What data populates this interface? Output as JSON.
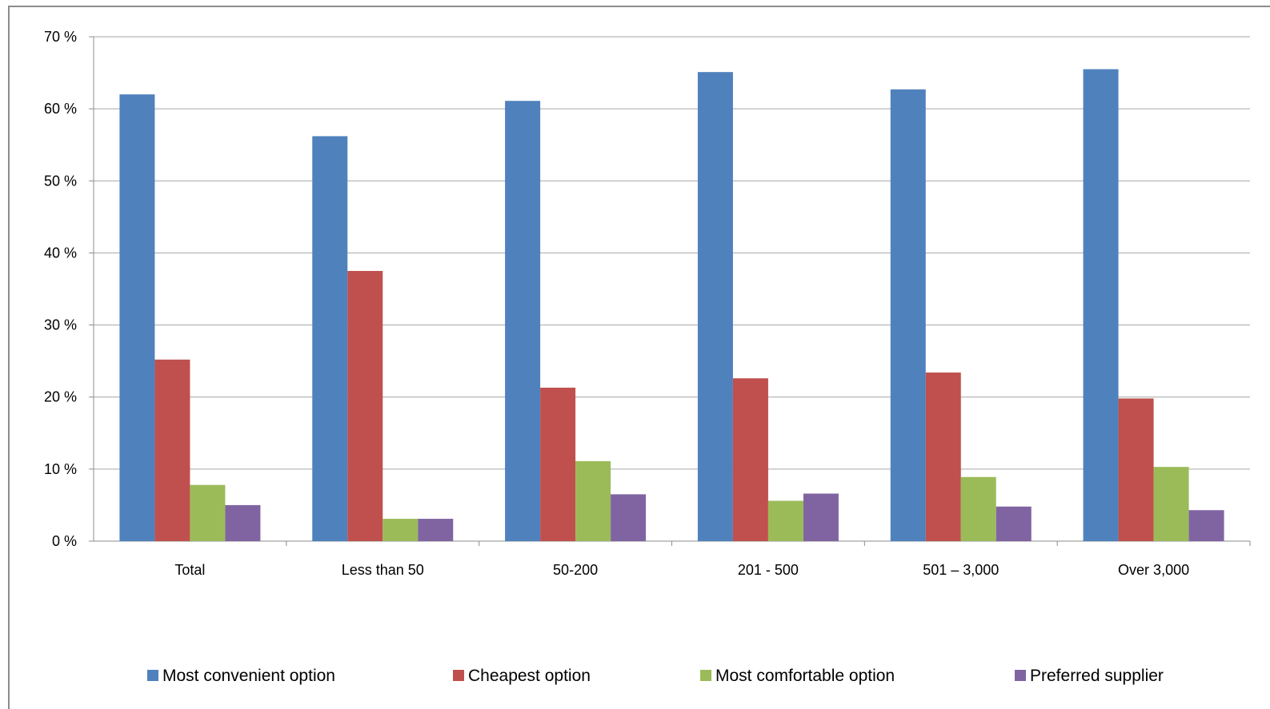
{
  "chart_data": {
    "type": "bar",
    "categories": [
      "Total",
      "Less than 50",
      "50-200",
      "201 - 500",
      "501 – 3,000",
      "Over 3,000"
    ],
    "series": [
      {
        "name": "Most convenient option",
        "color": "#4F81BD",
        "values": [
          62.0,
          56.2,
          61.1,
          65.1,
          62.7,
          65.5
        ]
      },
      {
        "name": "Cheapest option",
        "color": "#C0504D",
        "values": [
          25.2,
          37.5,
          21.3,
          22.6,
          23.4,
          19.8
        ]
      },
      {
        "name": "Most comfortable option",
        "color": "#9BBB59",
        "values": [
          7.8,
          3.1,
          11.1,
          5.6,
          8.9,
          10.3
        ]
      },
      {
        "name": "Preferred supplier",
        "color": "#8064A2",
        "values": [
          5.0,
          3.1,
          6.5,
          6.6,
          4.8,
          4.3
        ]
      }
    ],
    "yticks": [
      "0 %",
      "10 %",
      "20 %",
      "30 %",
      "40 %",
      "50 %",
      "60 %",
      "70 %"
    ],
    "ylim": [
      0,
      70
    ],
    "grid": true,
    "legend_position": "bottom",
    "title": "",
    "xlabel": "",
    "ylabel": ""
  }
}
